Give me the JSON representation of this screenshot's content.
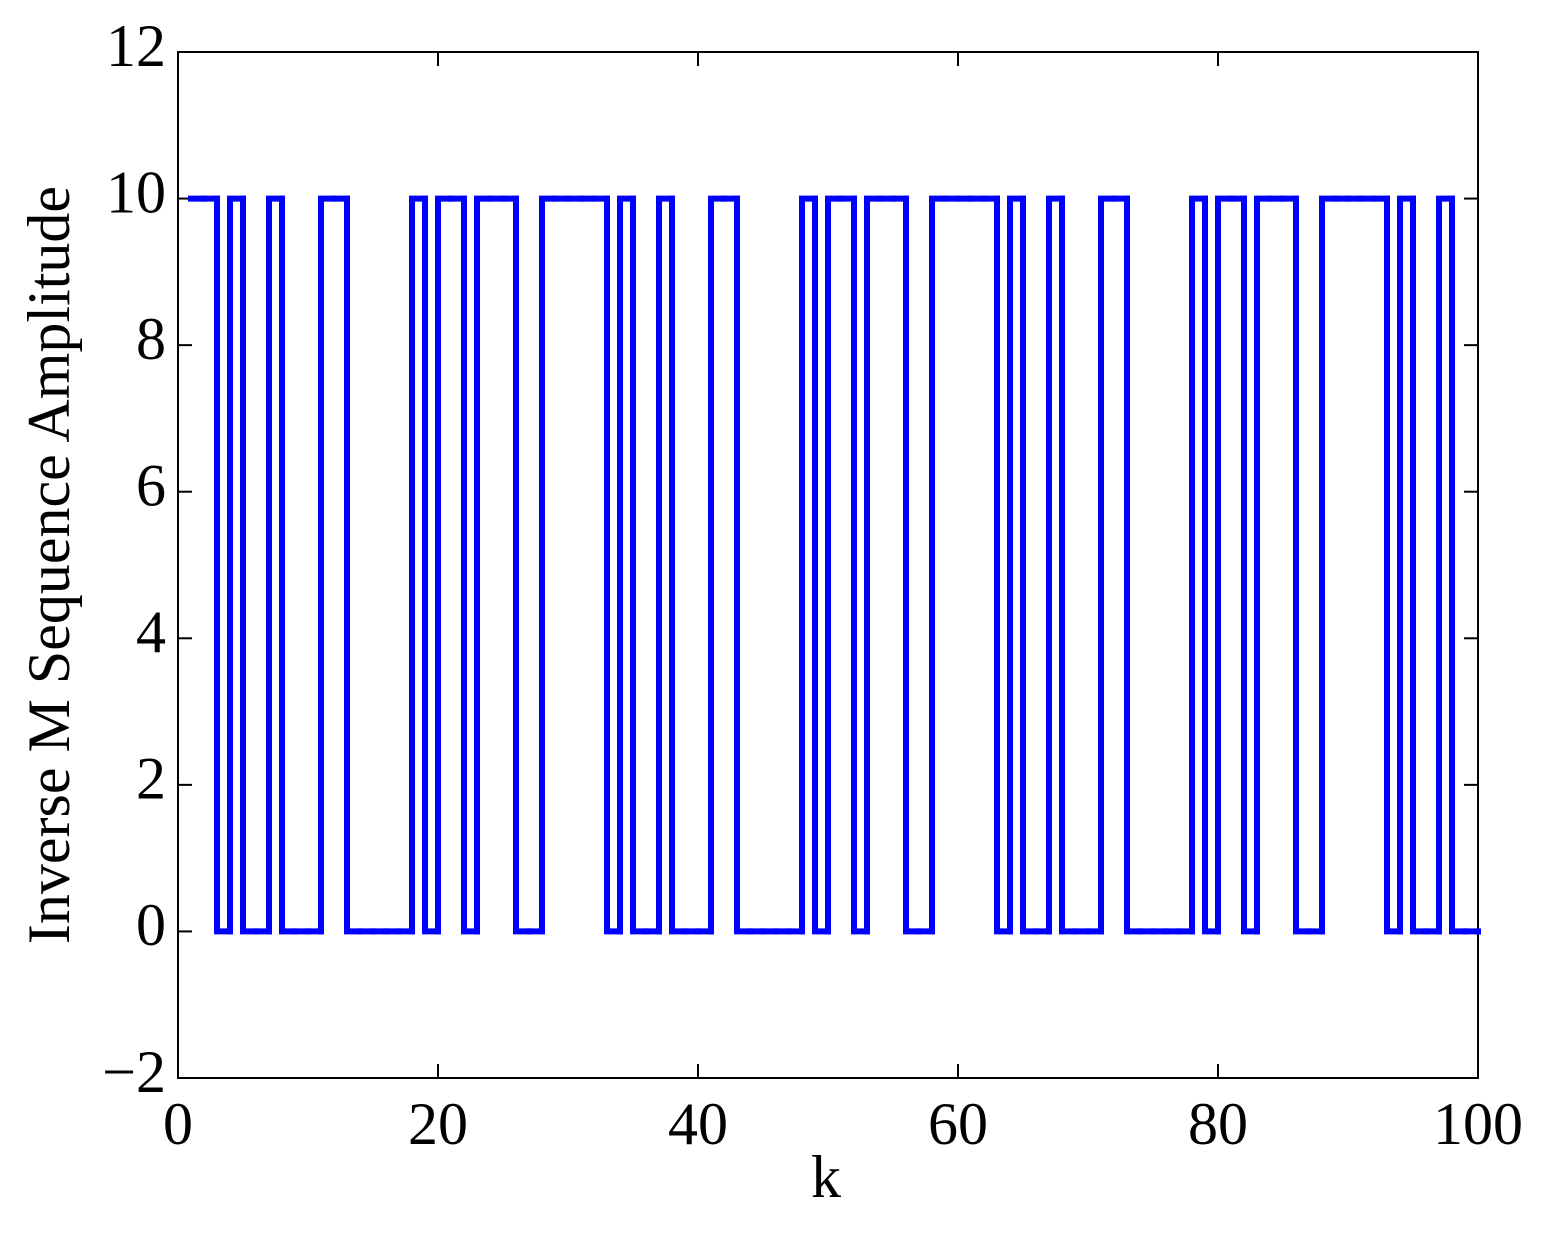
{
  "chart_data": {
    "type": "stairs",
    "xlabel": "k",
    "ylabel": "Inverse M Sequence Amplitude",
    "xlim": [
      0,
      100
    ],
    "xticks": [
      0,
      20,
      40,
      60,
      80,
      100
    ],
    "ylim": [
      -2,
      12
    ],
    "yticks": [
      {
        "value": -2,
        "label": "−2"
      },
      0,
      2,
      4,
      6,
      8,
      10,
      12
    ],
    "series": [
      {
        "color": "#0000ff",
        "x": [
          1,
          2,
          3,
          4,
          5,
          6,
          7,
          8,
          9,
          10,
          11,
          12,
          13,
          14,
          15,
          16,
          17,
          18,
          19,
          20,
          21,
          22,
          23,
          24,
          25,
          26,
          27,
          28,
          29,
          30,
          31,
          32,
          33,
          34,
          35,
          36,
          37,
          38,
          39,
          40,
          41,
          42,
          43,
          44,
          45,
          46,
          47,
          48,
          49,
          50,
          51,
          52,
          53,
          54,
          55,
          56,
          57,
          58,
          59,
          60,
          61,
          62,
          63,
          64,
          65,
          66,
          67,
          68,
          69,
          70,
          71,
          72,
          73,
          74,
          75,
          76,
          77,
          78,
          79,
          80,
          81,
          82,
          83,
          84,
          85,
          86,
          87,
          88,
          89,
          90,
          91,
          92,
          93,
          94,
          95,
          96,
          97,
          98,
          99,
          100
        ],
        "values": [
          10,
          10,
          0,
          10,
          0,
          0,
          10,
          0,
          0,
          0,
          10,
          10,
          0,
          0,
          0,
          0,
          0,
          10,
          0,
          10,
          10,
          0,
          10,
          10,
          10,
          0,
          0,
          10,
          10,
          10,
          10,
          10,
          0,
          10,
          0,
          0,
          10,
          0,
          0,
          0,
          10,
          10,
          0,
          0,
          0,
          0,
          0,
          10,
          0,
          10,
          10,
          0,
          10,
          10,
          10,
          0,
          0,
          10,
          10,
          10,
          10,
          10,
          0,
          10,
          0,
          0,
          10,
          0,
          0,
          0,
          10,
          10,
          0,
          0,
          0,
          0,
          0,
          10,
          0,
          10,
          10,
          0,
          10,
          10,
          10,
          0,
          0,
          10,
          10,
          10,
          10,
          10,
          0,
          10,
          0,
          0,
          10,
          0,
          0,
          0
        ]
      }
    ]
  }
}
